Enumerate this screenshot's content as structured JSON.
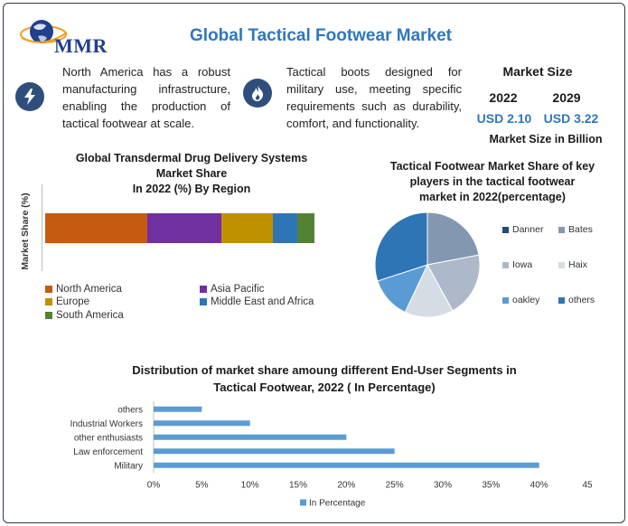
{
  "header": {
    "logo_text": "MMR",
    "title": "Global Tactical Footwear Market"
  },
  "facts": [
    {
      "icon": "lightning-icon",
      "text": "North America has a robust manufacturing infrastructure, enabling the production of tactical footwear at scale."
    },
    {
      "icon": "flame-icon",
      "text": "Tactical boots designed for military use, meeting specific requirements such as durability, comfort, and functionality."
    }
  ],
  "market_size": {
    "heading": "Market Size",
    "year_a": "2022",
    "year_b": "2029",
    "value_a": "USD 2.10",
    "value_b": "USD 3.22",
    "unit": "Market Size in Billion"
  },
  "colors": {
    "accent": "#2e77bf",
    "icon_bg": "#2e4f7c"
  },
  "chart_data": [
    {
      "type": "bar",
      "orientation": "horizontal-stacked",
      "title_lines": [
        "Global Transdermal Drug Delivery Systems",
        "Market Share",
        "In 2022 (%) By Region"
      ],
      "ylabel": "Market Share (%)",
      "series": [
        {
          "name": "North America",
          "value": 38,
          "color": "#c55a11"
        },
        {
          "name": "Asia Pacific",
          "value": 27.5,
          "color": "#7030a0"
        },
        {
          "name": "Europe",
          "value": 19,
          "color": "#bf9000"
        },
        {
          "name": "Middle East and Africa",
          "value": 9,
          "color": "#2e75b6"
        },
        {
          "name": "South America",
          "value": 6.5,
          "color": "#548235"
        }
      ],
      "legend": "bottom"
    },
    {
      "type": "pie",
      "title_lines": [
        "Tactical Footwear Market Share of key",
        "players in the tactical footwear",
        "market in 2022(percentage)"
      ],
      "slices": [
        {
          "name": "Danner",
          "value": 0,
          "color": "#1f4e79"
        },
        {
          "name": "Bates",
          "value": 22,
          "color": "#8497b0"
        },
        {
          "name": "Iowa",
          "value": 20,
          "color": "#adb9ca"
        },
        {
          "name": "Haix",
          "value": 15,
          "color": "#d6dce4"
        },
        {
          "name": "oakley",
          "value": 13,
          "color": "#5b9bd5"
        },
        {
          "name": "others",
          "value": 30,
          "color": "#2e75b6"
        }
      ],
      "legend": "right"
    },
    {
      "type": "bar",
      "orientation": "horizontal",
      "title_lines": [
        "Distribution of market share amoung different End-User Segments in",
        "Tactical Footwear, 2022 ( In Percentage)"
      ],
      "categories": [
        "others",
        "Industrial Workers",
        "other enthusiasts",
        "Law enforcement",
        "Military"
      ],
      "values": [
        5,
        10,
        20,
        25,
        40
      ],
      "xticks": [
        "0%",
        "5%",
        "10%",
        "15%",
        "20%",
        "25%",
        "30%",
        "35%",
        "40%",
        "45"
      ],
      "xlim": [
        0,
        45
      ],
      "series_name": "In Percentage",
      "color": "#5b9bd5",
      "legend": "bottom"
    }
  ]
}
